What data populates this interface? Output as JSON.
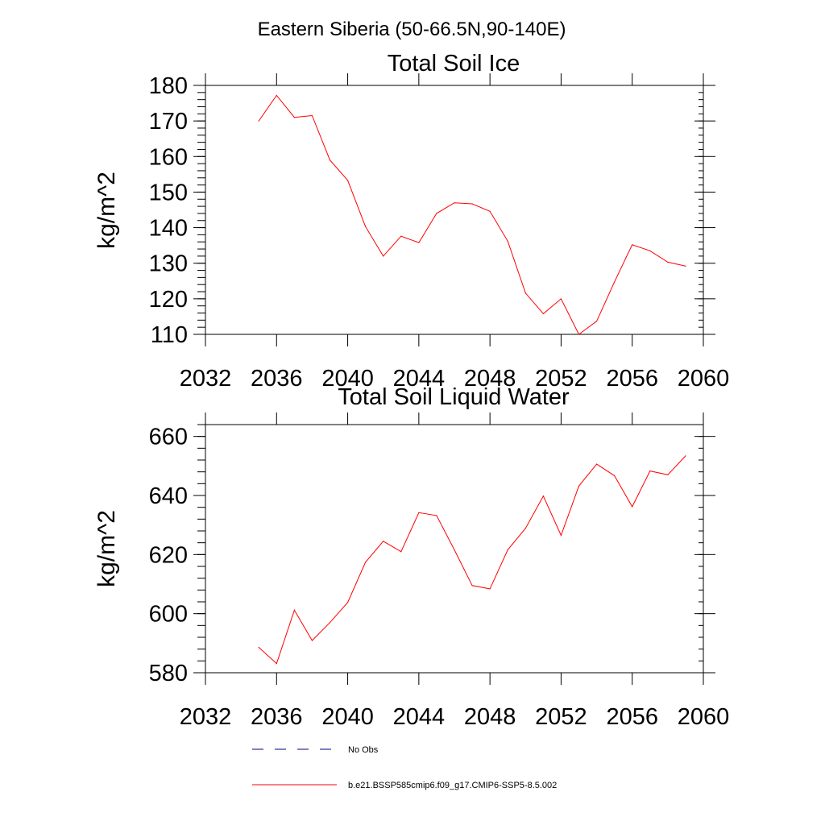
{
  "figure": {
    "title": "Eastern Siberia (50-66.5N,90-140E)"
  },
  "colors": {
    "series_model": "#ff0000",
    "series_obs": "#00008b",
    "axis": "#000000",
    "background": "#ffffff"
  },
  "legend": {
    "placement": "bottom",
    "items": [
      {
        "label": "No Obs",
        "style": "dashed",
        "color": "#00008b"
      },
      {
        "label": "b.e21.BSSP585cmip6.f09_g17.CMIP6-SSP5-8.5.002",
        "style": "solid",
        "color": "#ff0000"
      }
    ]
  },
  "chart_data": [
    {
      "type": "line",
      "title": "Total Soil Ice",
      "ylabel": "kg/m^2",
      "xlabel": "",
      "xlim": [
        2032,
        2060
      ],
      "ylim": [
        110,
        180
      ],
      "xticks": [
        "2032",
        "2036",
        "2040",
        "2044",
        "2048",
        "2052",
        "2056",
        "2060"
      ],
      "yticks": [
        "110",
        "120",
        "130",
        "140",
        "150",
        "160",
        "170",
        "180"
      ],
      "grid": false,
      "series": [
        {
          "name": "b.e21.BSSP585cmip6.f09_g17.CMIP6-SSP5-8.5.002",
          "x": [
            2035,
            2036,
            2037,
            2038,
            2039,
            2040,
            2041,
            2042,
            2043,
            2044,
            2045,
            2046,
            2047,
            2048,
            2049,
            2050,
            2051,
            2052,
            2053,
            2054,
            2055,
            2056,
            2057,
            2058,
            2059
          ],
          "values": [
            170.0,
            177.2,
            171.0,
            171.5,
            159.0,
            153.3,
            140.3,
            132.0,
            137.6,
            135.8,
            144.0,
            147.0,
            146.7,
            144.6,
            136.2,
            121.6,
            115.8,
            120.0,
            110.0,
            113.7,
            124.7,
            135.2,
            133.5,
            130.3,
            129.2
          ]
        }
      ]
    },
    {
      "type": "line",
      "title": "Total Soil Liquid Water",
      "ylabel": "kg/m^2",
      "xlabel": "",
      "xlim": [
        2032,
        2060
      ],
      "ylim": [
        580,
        664
      ],
      "xticks": [
        "2032",
        "2036",
        "2040",
        "2044",
        "2048",
        "2052",
        "2056",
        "2060"
      ],
      "yticks": [
        "580",
        "600",
        "620",
        "640",
        "660"
      ],
      "grid": false,
      "series": [
        {
          "name": "b.e21.BSSP585cmip6.f09_g17.CMIP6-SSP5-8.5.002",
          "x": [
            2035,
            2036,
            2037,
            2038,
            2039,
            2040,
            2041,
            2042,
            2043,
            2044,
            2045,
            2046,
            2047,
            2048,
            2049,
            2050,
            2051,
            2052,
            2053,
            2054,
            2055,
            2056,
            2057,
            2058,
            2059
          ],
          "values": [
            588.6,
            583.1,
            601.2,
            590.9,
            597.0,
            603.8,
            617.4,
            624.5,
            621.0,
            634.2,
            633.2,
            621.6,
            609.5,
            608.4,
            621.6,
            628.9,
            639.8,
            626.5,
            643.2,
            650.6,
            646.7,
            636.2,
            648.3,
            647.0,
            653.4
          ]
        }
      ]
    }
  ]
}
